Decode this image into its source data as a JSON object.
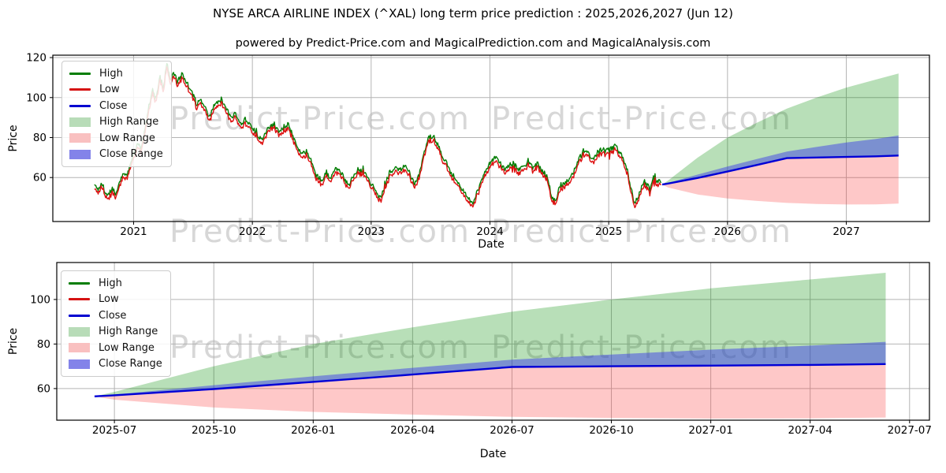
{
  "header": {
    "title": "NYSE ARCA AIRLINE INDEX (^XAL) long term price prediction : 2025,2026,2027 (Jun 12)",
    "subtitle": "powered by Predict-Price.com and MagicalPrediction.com and MagicalAnalysis.com"
  },
  "watermark": {
    "text": "Predict-Price.com",
    "color": "#d7d7d7"
  },
  "colors": {
    "high_line": "#037d03",
    "low_line": "#dd1111",
    "close_line": "#0000d6",
    "high_fill": "rgba(0,140,0,0.28)",
    "low_fill": "rgba(250,50,50,0.27)",
    "close_fill": "rgba(55,55,235,0.47)",
    "grid": "#b4b4b4",
    "spine": "#000000",
    "tick_text": "#000000"
  },
  "legend": {
    "items": [
      {
        "label": "High",
        "kind": "line",
        "swatch": "#037d03"
      },
      {
        "label": "Low",
        "kind": "line",
        "swatch": "#d51212"
      },
      {
        "label": "Close",
        "kind": "line",
        "swatch": "#0000d0"
      },
      {
        "label": "High Range",
        "kind": "patch",
        "swatch": "#b8dcb8"
      },
      {
        "label": "Low Range",
        "kind": "patch",
        "swatch": "#f9c0c0"
      },
      {
        "label": "Close Range",
        "kind": "patch",
        "swatch": "#8383e9"
      }
    ]
  },
  "chart_data": [
    {
      "type": "line",
      "name": "price-history-with-prediction",
      "xlabel": "Date",
      "ylabel": "Price",
      "grid": true,
      "xlim": [
        2020.32,
        2027.7
      ],
      "ylim": [
        38.0,
        121.2
      ],
      "x_ticks": [
        {
          "t": 2021,
          "label": "2021"
        },
        {
          "t": 2022,
          "label": "2022"
        },
        {
          "t": 2023,
          "label": "2023"
        },
        {
          "t": 2024,
          "label": "2024"
        },
        {
          "t": 2025,
          "label": "2025"
        },
        {
          "t": 2026,
          "label": "2026"
        },
        {
          "t": 2027,
          "label": "2027"
        }
      ],
      "y_ticks": [
        {
          "v": 60,
          "label": "60"
        },
        {
          "v": 80,
          "label": "80"
        },
        {
          "v": 100,
          "label": "100"
        },
        {
          "v": 120,
          "label": "120"
        }
      ],
      "history": {
        "noise": {
          "seed": 1337,
          "amplitude": 1.2,
          "samples": 760,
          "spike_chance": 0.05,
          "spike_size": 5
        },
        "t": [
          2020.67,
          2020.7,
          2020.73,
          2020.76,
          2020.79,
          2020.82,
          2020.85,
          2020.88,
          2020.91,
          2020.94,
          2020.97,
          2021.0,
          2021.03,
          2021.06,
          2021.1,
          2021.13,
          2021.16,
          2021.19,
          2021.22,
          2021.25,
          2021.28,
          2021.31,
          2021.34,
          2021.37,
          2021.4,
          2021.43,
          2021.46,
          2021.5,
          2021.53,
          2021.56,
          2021.6,
          2021.64,
          2021.66,
          2021.7,
          2021.74,
          2021.78,
          2021.82,
          2021.86,
          2021.9,
          2021.94,
          2021.98,
          2022.02,
          2022.06,
          2022.1,
          2022.14,
          2022.18,
          2022.22,
          2022.26,
          2022.3,
          2022.34,
          2022.38,
          2022.42,
          2022.46,
          2022.5,
          2022.54,
          2022.58,
          2022.62,
          2022.66,
          2022.7,
          2022.74,
          2022.78,
          2022.82,
          2022.86,
          2022.9,
          2022.94,
          2022.98,
          2023.02,
          2023.05,
          2023.08,
          2023.12,
          2023.16,
          2023.2,
          2023.24,
          2023.28,
          2023.32,
          2023.36,
          2023.4,
          2023.44,
          2023.48,
          2023.52,
          2023.56,
          2023.6,
          2023.64,
          2023.68,
          2023.72,
          2023.76,
          2023.8,
          2023.85,
          2023.88,
          2023.92,
          2023.96,
          2024.0,
          2024.04,
          2024.08,
          2024.12,
          2024.16,
          2024.2,
          2024.24,
          2024.28,
          2024.32,
          2024.36,
          2024.4,
          2024.44,
          2024.48,
          2024.52,
          2024.55,
          2024.58,
          2024.62,
          2024.66,
          2024.7,
          2024.74,
          2024.78,
          2024.82,
          2024.86,
          2024.9,
          2024.94,
          2024.98,
          2025.02,
          2025.06,
          2025.1,
          2025.14,
          2025.18,
          2025.22,
          2025.26,
          2025.3,
          2025.34,
          2025.38,
          2025.42,
          2025.44
        ],
        "close": [
          56,
          53,
          57,
          52,
          50,
          54,
          51,
          56,
          62,
          60,
          66,
          70,
          76,
          73,
          84,
          95,
          103,
          98,
          110,
          104,
          116,
          108,
          112,
          107,
          111,
          109,
          105,
          100,
          96,
          99,
          94,
          89,
          93,
          96,
          98,
          94,
          88,
          92,
          85,
          88,
          86,
          82,
          78,
          80,
          84,
          86,
          82,
          84,
          86,
          80,
          75,
          70,
          73,
          66,
          60,
          57,
          62,
          59,
          64,
          62,
          58,
          56,
          61,
          64,
          62,
          58,
          54,
          51,
          49,
          56,
          62,
          64,
          63,
          65,
          62,
          56,
          60,
          70,
          79,
          80,
          76,
          70,
          66,
          61,
          58,
          54,
          50,
          46,
          50,
          56,
          62,
          66,
          69,
          67,
          63,
          65,
          66,
          63,
          65,
          67,
          64,
          66,
          63,
          60,
          50,
          47,
          53,
          56,
          58,
          61,
          67,
          72,
          73,
          68,
          71,
          73,
          72,
          74,
          75,
          71,
          66,
          56,
          46,
          52,
          57,
          54,
          58,
          57,
          56.5
        ],
        "high_low_base_offset": 0.5,
        "high_low_var_offset": 0.9
      },
      "prediction": {
        "x": [
          2025.45,
          2025.5,
          2025.75,
          2026.0,
          2026.25,
          2026.5,
          2026.75,
          2027.0,
          2027.25,
          2027.44
        ],
        "close": [
          56.5,
          57.0,
          59.8,
          63.0,
          66.3,
          69.7,
          70.0,
          70.3,
          70.6,
          71.0
        ],
        "close_hi": [
          56.5,
          57.3,
          61.5,
          65.5,
          69.3,
          73.0,
          75.3,
          77.5,
          79.3,
          81.0
        ],
        "high_top": [
          56.5,
          58.5,
          70.0,
          80.0,
          87.5,
          94.5,
          100.0,
          105.0,
          109.0,
          112.0
        ],
        "low_bot": [
          56.5,
          55.0,
          51.5,
          49.5,
          48.3,
          47.3,
          46.8,
          46.5,
          46.6,
          47.0
        ]
      }
    },
    {
      "type": "line",
      "name": "prediction-detail",
      "xlabel": "Date",
      "ylabel": "Price",
      "grid": true,
      "xlim": [
        2025.355,
        2027.55
      ],
      "ylim": [
        45.8,
        116.6
      ],
      "x_ticks": [
        {
          "t": 2025.5,
          "label": "2025-07"
        },
        {
          "t": 2025.75,
          "label": "2025-10"
        },
        {
          "t": 2026.0,
          "label": "2026-01"
        },
        {
          "t": 2026.25,
          "label": "2026-04"
        },
        {
          "t": 2026.5,
          "label": "2026-07"
        },
        {
          "t": 2026.75,
          "label": "2026-10"
        },
        {
          "t": 2027.0,
          "label": "2027-01"
        },
        {
          "t": 2027.25,
          "label": "2027-04"
        },
        {
          "t": 2027.5,
          "label": "2027-07"
        }
      ],
      "y_ticks": [
        {
          "v": 60,
          "label": "60"
        },
        {
          "v": 80,
          "label": "80"
        },
        {
          "v": 100,
          "label": "100"
        }
      ],
      "prediction": {
        "x": [
          2025.45,
          2025.5,
          2025.75,
          2026.0,
          2026.25,
          2026.5,
          2026.75,
          2027.0,
          2027.25,
          2027.44
        ],
        "close": [
          56.5,
          57.0,
          59.8,
          63.0,
          66.3,
          69.7,
          70.0,
          70.3,
          70.6,
          71.0
        ],
        "close_hi": [
          56.5,
          57.3,
          61.5,
          65.5,
          69.3,
          73.0,
          75.3,
          77.5,
          79.3,
          81.0
        ],
        "high_top": [
          56.5,
          58.5,
          70.0,
          80.0,
          87.5,
          94.5,
          100.0,
          105.0,
          109.0,
          112.0
        ],
        "low_bot": [
          56.5,
          55.0,
          51.5,
          49.5,
          48.3,
          47.3,
          46.8,
          46.5,
          46.6,
          47.0
        ]
      }
    }
  ]
}
